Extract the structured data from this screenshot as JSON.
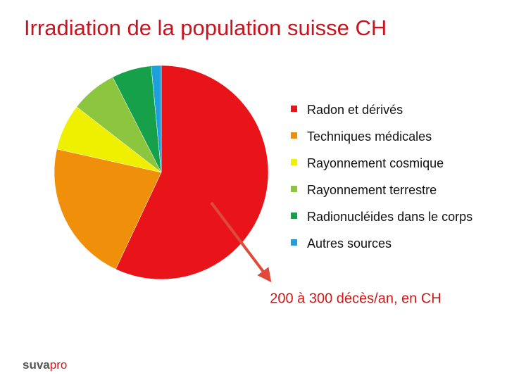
{
  "chart_data": {
    "type": "pie",
    "title": "Irradiation de la population suisse CH",
    "categories": [
      "Radon et dérivés",
      "Techniques médicales",
      "Rayonnement cosmique",
      "Rayonnement terrestre",
      "Radionucléides dans le corps",
      "Autres sources"
    ],
    "values": [
      57,
      21.5,
      7,
      7,
      6,
      1.5
    ],
    "colors": [
      "#e8141a",
      "#f0900a",
      "#eef000",
      "#8cc63f",
      "#16a04a",
      "#1ea0dc"
    ],
    "annotation": "200 à 300 décès/an, en CH",
    "logo": {
      "brand": "suva",
      "product": "pro"
    }
  }
}
